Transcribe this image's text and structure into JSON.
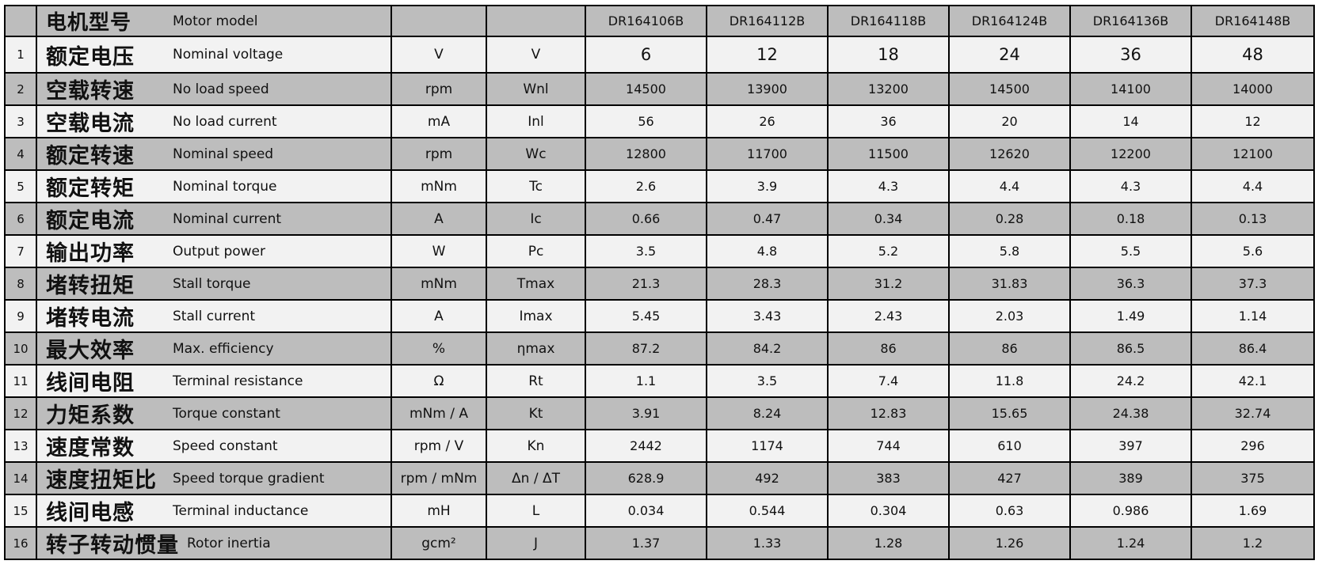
{
  "colors": {
    "row_gray": "#bdbdbd",
    "row_light": "#f2f2f2",
    "border": "#000000",
    "text": "#111111",
    "page_bg": "#ffffff"
  },
  "table": {
    "header": {
      "num": "",
      "zh": "电机型号",
      "en": "Motor model",
      "unit": "",
      "symbol": "",
      "models": [
        "DR164106B",
        "DR164112B",
        "DR164118B",
        "DR164124B",
        "DR164136B",
        "DR164148B"
      ]
    },
    "rows": [
      {
        "num": "1",
        "zh": "额定电压",
        "en": "Nominal voltage",
        "unit": "V",
        "symbol": "V",
        "values": [
          "6",
          "12",
          "18",
          "24",
          "36",
          "48"
        ]
      },
      {
        "num": "2",
        "zh": "空载转速",
        "en": "No load speed",
        "unit": "rpm",
        "symbol": "Wnl",
        "values": [
          "14500",
          "13900",
          "13200",
          "14500",
          "14100",
          "14000"
        ]
      },
      {
        "num": "3",
        "zh": "空载电流",
        "en": "No load current",
        "unit": "mA",
        "symbol": "Inl",
        "values": [
          "56",
          "26",
          "36",
          "20",
          "14",
          "12"
        ]
      },
      {
        "num": "4",
        "zh": "额定转速",
        "en": "Nominal speed",
        "unit": "rpm",
        "symbol": "Wc",
        "values": [
          "12800",
          "11700",
          "11500",
          "12620",
          "12200",
          "12100"
        ]
      },
      {
        "num": "5",
        "zh": "额定转矩",
        "en": "Nominal torque",
        "unit": "mNm",
        "symbol": "Tc",
        "values": [
          "2.6",
          "3.9",
          "4.3",
          "4.4",
          "4.3",
          "4.4"
        ]
      },
      {
        "num": "6",
        "zh": "额定电流",
        "en": "Nominal current",
        "unit": "A",
        "symbol": "Ic",
        "values": [
          "0.66",
          "0.47",
          "0.34",
          "0.28",
          "0.18",
          "0.13"
        ]
      },
      {
        "num": "7",
        "zh": "输出功率",
        "en": "Output power",
        "unit": "W",
        "symbol": "Pc",
        "values": [
          "3.5",
          "4.8",
          "5.2",
          "5.8",
          "5.5",
          "5.6"
        ]
      },
      {
        "num": "8",
        "zh": "堵转扭矩",
        "en": "Stall torque",
        "unit": "mNm",
        "symbol": "Tmax",
        "values": [
          "21.3",
          "28.3",
          "31.2",
          "31.83",
          "36.3",
          "37.3"
        ]
      },
      {
        "num": "9",
        "zh": "堵转电流",
        "en": "Stall current",
        "unit": "A",
        "symbol": "Imax",
        "values": [
          "5.45",
          "3.43",
          "2.43",
          "2.03",
          "1.49",
          "1.14"
        ]
      },
      {
        "num": "10",
        "zh": "最大效率",
        "en": "Max. efficiency",
        "unit": "%",
        "symbol": "ηmax",
        "values": [
          "87.2",
          "84.2",
          "86",
          "86",
          "86.5",
          "86.4"
        ]
      },
      {
        "num": "11",
        "zh": "线间电阻",
        "en": "Terminal resistance",
        "unit": "Ω",
        "symbol": "Rt",
        "values": [
          "1.1",
          "3.5",
          "7.4",
          "11.8",
          "24.2",
          "42.1"
        ]
      },
      {
        "num": "12",
        "zh": "力矩系数",
        "en": "Torque constant",
        "unit": "mNm / A",
        "symbol": "Kt",
        "values": [
          "3.91",
          "8.24",
          "12.83",
          "15.65",
          "24.38",
          "32.74"
        ]
      },
      {
        "num": "13",
        "zh": "速度常数",
        "en": "Speed constant",
        "unit": "rpm / V",
        "symbol": "Kn",
        "values": [
          "2442",
          "1174",
          "744",
          "610",
          "397",
          "296"
        ]
      },
      {
        "num": "14",
        "zh": "速度扭矩比",
        "en": "Speed torque gradient",
        "unit": "rpm / mNm",
        "symbol": "Δn / ΔT",
        "values": [
          "628.9",
          "492",
          "383",
          "427",
          "389",
          "375"
        ]
      },
      {
        "num": "15",
        "zh": "线间电感",
        "en": "Terminal inductance",
        "unit": "mH",
        "symbol": "L",
        "values": [
          "0.034",
          "0.544",
          "0.304",
          "0.63",
          "0.986",
          "1.69"
        ]
      },
      {
        "num": "16",
        "zh": "转子转动惯量",
        "en": "Rotor inertia",
        "unit": "gcm²",
        "symbol": "J",
        "values": [
          "1.37",
          "1.33",
          "1.28",
          "1.26",
          "1.24",
          "1.2"
        ]
      }
    ]
  }
}
